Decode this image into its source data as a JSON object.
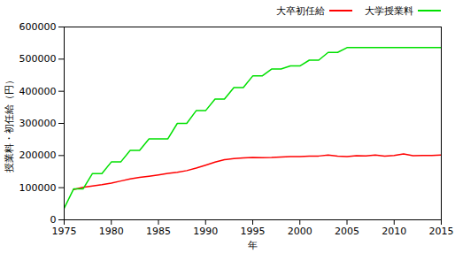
{
  "chart_data": {
    "type": "line",
    "x_label": "年",
    "y_label": "授業料・初任給（円）",
    "x": [
      1975,
      1976,
      1977,
      1978,
      1979,
      1980,
      1981,
      1982,
      1983,
      1984,
      1985,
      1986,
      1987,
      1988,
      1989,
      1990,
      1991,
      1992,
      1993,
      1994,
      1995,
      1996,
      1997,
      1998,
      1999,
      2000,
      2001,
      2002,
      2003,
      2004,
      2005,
      2006,
      2007,
      2008,
      2009,
      2010,
      2011,
      2012,
      2013,
      2014,
      2015
    ],
    "series": [
      {
        "name": "大卒初任給",
        "color": "#ff0000",
        "values": [
          null,
          94300,
          101000,
          105500,
          109500,
          114500,
          120800,
          127200,
          132200,
          135800,
          140000,
          144500,
          148200,
          153100,
          160900,
          169900,
          179400,
          186900,
          190300,
          192400,
          194200,
          193200,
          193900,
          195500,
          196600,
          196900,
          198300,
          198500,
          201300,
          198300,
          196700,
          199800,
          198700,
          201300,
          198400,
          200300,
          205000,
          199600,
          200200,
          200400,
          202000
        ]
      },
      {
        "name": "大学授業料",
        "color": "#00e000",
        "values": [
          36000,
          96000,
          96000,
          144000,
          144000,
          180000,
          180000,
          216000,
          216000,
          252000,
          252000,
          252000,
          300000,
          300000,
          339600,
          339600,
          375600,
          375600,
          411600,
          411600,
          447600,
          447600,
          469200,
          469200,
          478800,
          478800,
          496800,
          496800,
          520800,
          520800,
          535800,
          535800,
          535800,
          535800,
          535800,
          535800,
          535800,
          535800,
          535800,
          535800,
          535800
        ]
      }
    ],
    "xlim": [
      1975,
      2015
    ],
    "xticks": [
      1975,
      1980,
      1985,
      1990,
      1995,
      2000,
      2005,
      2010,
      2015
    ],
    "ylim": [
      0,
      600000
    ],
    "yticks": [
      0,
      100000,
      200000,
      300000,
      400000,
      500000,
      600000
    ],
    "grid": false,
    "legend": "top-right"
  }
}
